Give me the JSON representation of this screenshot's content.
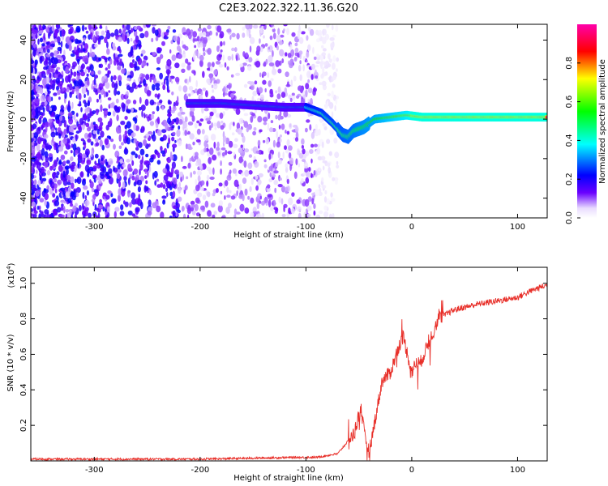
{
  "title": "C2E3.2022.322.11.36.G20",
  "chart_data": [
    {
      "type": "heatmap",
      "xlabel": "Height of straight line (km)",
      "ylabel": "Frequency (Hz)",
      "xlim": [
        -360,
        128
      ],
      "ylim": [
        -50,
        48
      ],
      "xticks": [
        -300,
        -200,
        -100,
        0,
        100
      ],
      "xtick_labels": [
        "-300",
        "-200",
        "-100",
        "0",
        "100"
      ],
      "yticks": [
        -40,
        -20,
        0,
        20,
        40
      ],
      "ytick_labels": [
        "-40",
        "-20",
        "0",
        "20",
        "40"
      ],
      "colorbar": {
        "label": "Normalized spectral amplitude",
        "range": [
          0,
          1
        ],
        "ticks": [
          0.0,
          0.2,
          0.4,
          0.6,
          0.8
        ],
        "tick_labels": [
          "0.0",
          "0.2",
          "0.4",
          "0.6",
          "0.8"
        ],
        "colormap": [
          "#ffffff",
          "#6a00ff",
          "#0000ff",
          "#00ffff",
          "#00ff00",
          "#ffff00",
          "#ff0000",
          "#ff00aa"
        ]
      },
      "ridge": {
        "x": [
          -210,
          -180,
          -150,
          -120,
          -100,
          -85,
          -75,
          -65,
          -60,
          -55,
          -50,
          -45,
          -35,
          -20,
          -5,
          10,
          40,
          80,
          128
        ],
        "y": [
          8,
          8,
          7,
          6,
          6,
          3,
          -2,
          -8,
          -9,
          -6,
          -5,
          -4,
          0,
          1,
          2,
          1,
          1,
          1,
          1
        ]
      }
    },
    {
      "type": "line",
      "xlabel": "Height of straight line (km)",
      "ylabel": "SNR (10 * v/v)",
      "scale_label": "(x10",
      "scale_exp": "4",
      "scale_close": ")",
      "xlim": [
        -360,
        128
      ],
      "ylim": [
        0,
        1.09
      ],
      "xticks": [
        -300,
        -200,
        -100,
        0,
        100
      ],
      "xtick_labels": [
        "-300",
        "-200",
        "-100",
        "0",
        "100"
      ],
      "yticks": [
        0.2,
        0.4,
        0.6,
        0.8,
        1.0
      ],
      "ytick_labels": [
        "0.2",
        "0.4",
        "0.6",
        "0.8",
        "1.0"
      ],
      "color": "#e8302a",
      "series": {
        "x": [
          -360,
          -300,
          -250,
          -200,
          -150,
          -110,
          -90,
          -70,
          -55,
          -48,
          -44,
          -40,
          -35,
          -28,
          -20,
          -12,
          -8,
          -4,
          0,
          4,
          8,
          15,
          25,
          40,
          60,
          80,
          100,
          110,
          118,
          128
        ],
        "y": [
          0.01,
          0.01,
          0.01,
          0.01,
          0.015,
          0.02,
          0.02,
          0.04,
          0.15,
          0.3,
          0.12,
          0.05,
          0.22,
          0.45,
          0.5,
          0.65,
          0.7,
          0.6,
          0.5,
          0.55,
          0.55,
          0.65,
          0.8,
          0.85,
          0.88,
          0.9,
          0.92,
          0.95,
          0.97,
          0.99
        ]
      }
    }
  ]
}
